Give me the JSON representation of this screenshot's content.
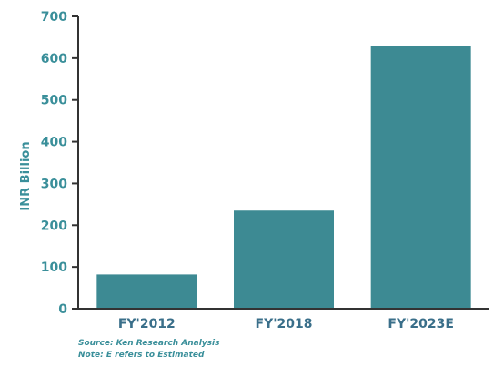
{
  "chart_data": {
    "type": "bar",
    "title": "",
    "xlabel": "",
    "ylabel": "INR Billion",
    "categories": [
      "FY'2012",
      "FY'2018",
      "FY'2023E"
    ],
    "series": [
      {
        "values": [
          82,
          235,
          630
        ]
      }
    ],
    "ylim": [
      0,
      700
    ],
    "yticks": [
      0,
      100,
      200,
      300,
      400,
      500,
      600,
      700
    ],
    "grid": false,
    "legend": "none"
  },
  "notes": {
    "source": "Source: Ken Research Analysis",
    "estimate": "Note: E refers to Estimated"
  },
  "colors": {
    "bar": "#3d8a93",
    "axis": "#333333",
    "tick_label": "#3a8f9a",
    "category_label": "#3a6f8a"
  }
}
